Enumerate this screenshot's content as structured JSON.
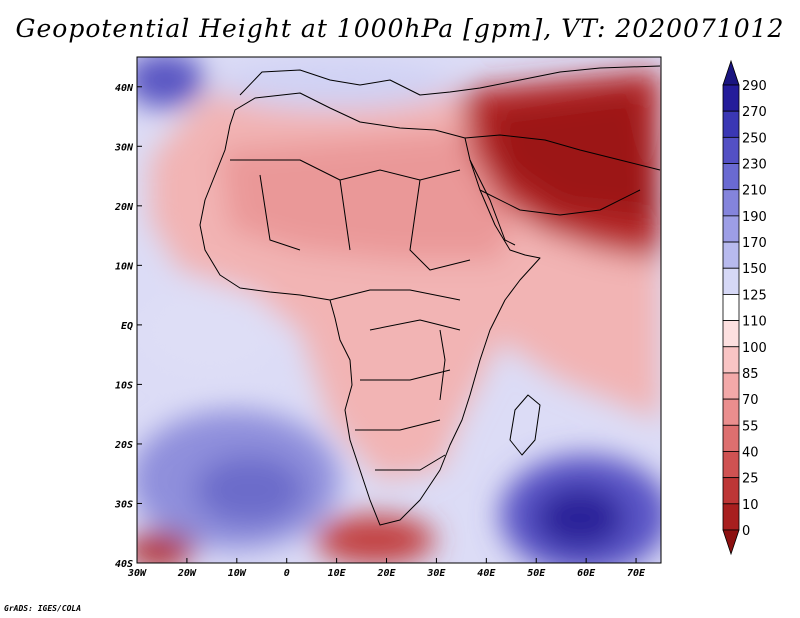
{
  "title": "Geopotential Height at 1000hPa [gpm], VT: 2020071012",
  "credit": "GrADS: IGES/COLA",
  "map": {
    "x_ticks": [
      "30W",
      "20W",
      "10W",
      "0",
      "10E",
      "20E",
      "30E",
      "40E",
      "50E",
      "60E",
      "70E"
    ],
    "y_ticks": [
      "40N",
      "30N",
      "20N",
      "10N",
      "EQ",
      "10S",
      "20S",
      "30S",
      "40S"
    ],
    "lon_range": [
      -30,
      75
    ],
    "lat_range": [
      -40,
      45
    ]
  },
  "colorbar": {
    "labels": [
      "290",
      "270",
      "250",
      "230",
      "210",
      "190",
      "170",
      "150",
      "125",
      "110",
      "100",
      "85",
      "70",
      "55",
      "40",
      "25",
      "10",
      "0"
    ],
    "colors": [
      "#241c9a",
      "#3a37b4",
      "#5350c4",
      "#6a6ad2",
      "#8484dc",
      "#9d9ee6",
      "#b8baee",
      "#d6d8f6",
      "#ffffff",
      "#fde0e0",
      "#f9c4c4",
      "#f3a9a9",
      "#ea8e8e",
      "#dd6f6f",
      "#cf5252",
      "#bd3636",
      "#a81f1f"
    ],
    "top_arrow_color": "#1a1580",
    "bottom_arrow_color": "#8c1010"
  }
}
